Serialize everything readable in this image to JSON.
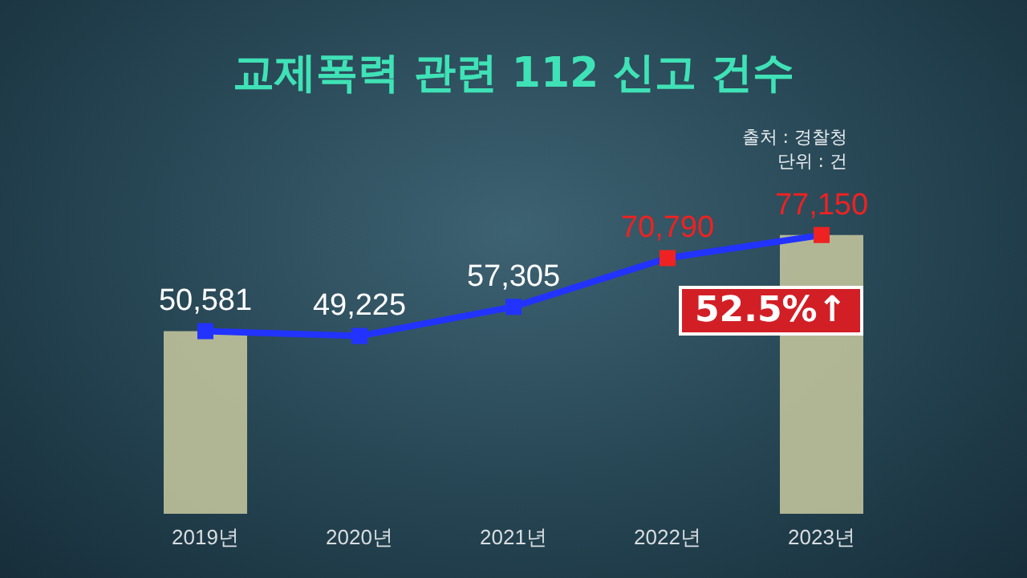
{
  "chart_data": {
    "type": "line",
    "title": "교제폭력 관련 112 신고 건수",
    "categories": [
      "2019년",
      "2020년",
      "2021년",
      "2022년",
      "2023년"
    ],
    "series": [
      {
        "type": "bar",
        "color": "#c9caa0",
        "values": [
          50581,
          null,
          null,
          null,
          77150
        ]
      },
      {
        "color": "#2233ff",
        "colors": [
          "#2233ff",
          "#2233ff",
          "#2233ff",
          "#ee2222",
          "#ee2222"
        ],
        "values": [
          50581,
          49225,
          57305,
          70790,
          77150
        ],
        "value_labels": [
          "50,581",
          "49,225",
          "57,305",
          "70,790",
          "77,150"
        ]
      }
    ],
    "marker": "square",
    "line_style": "solid",
    "annotations": [
      "출처 : 경찰청",
      "단위 : 건",
      "52.5%↑"
    ]
  }
}
